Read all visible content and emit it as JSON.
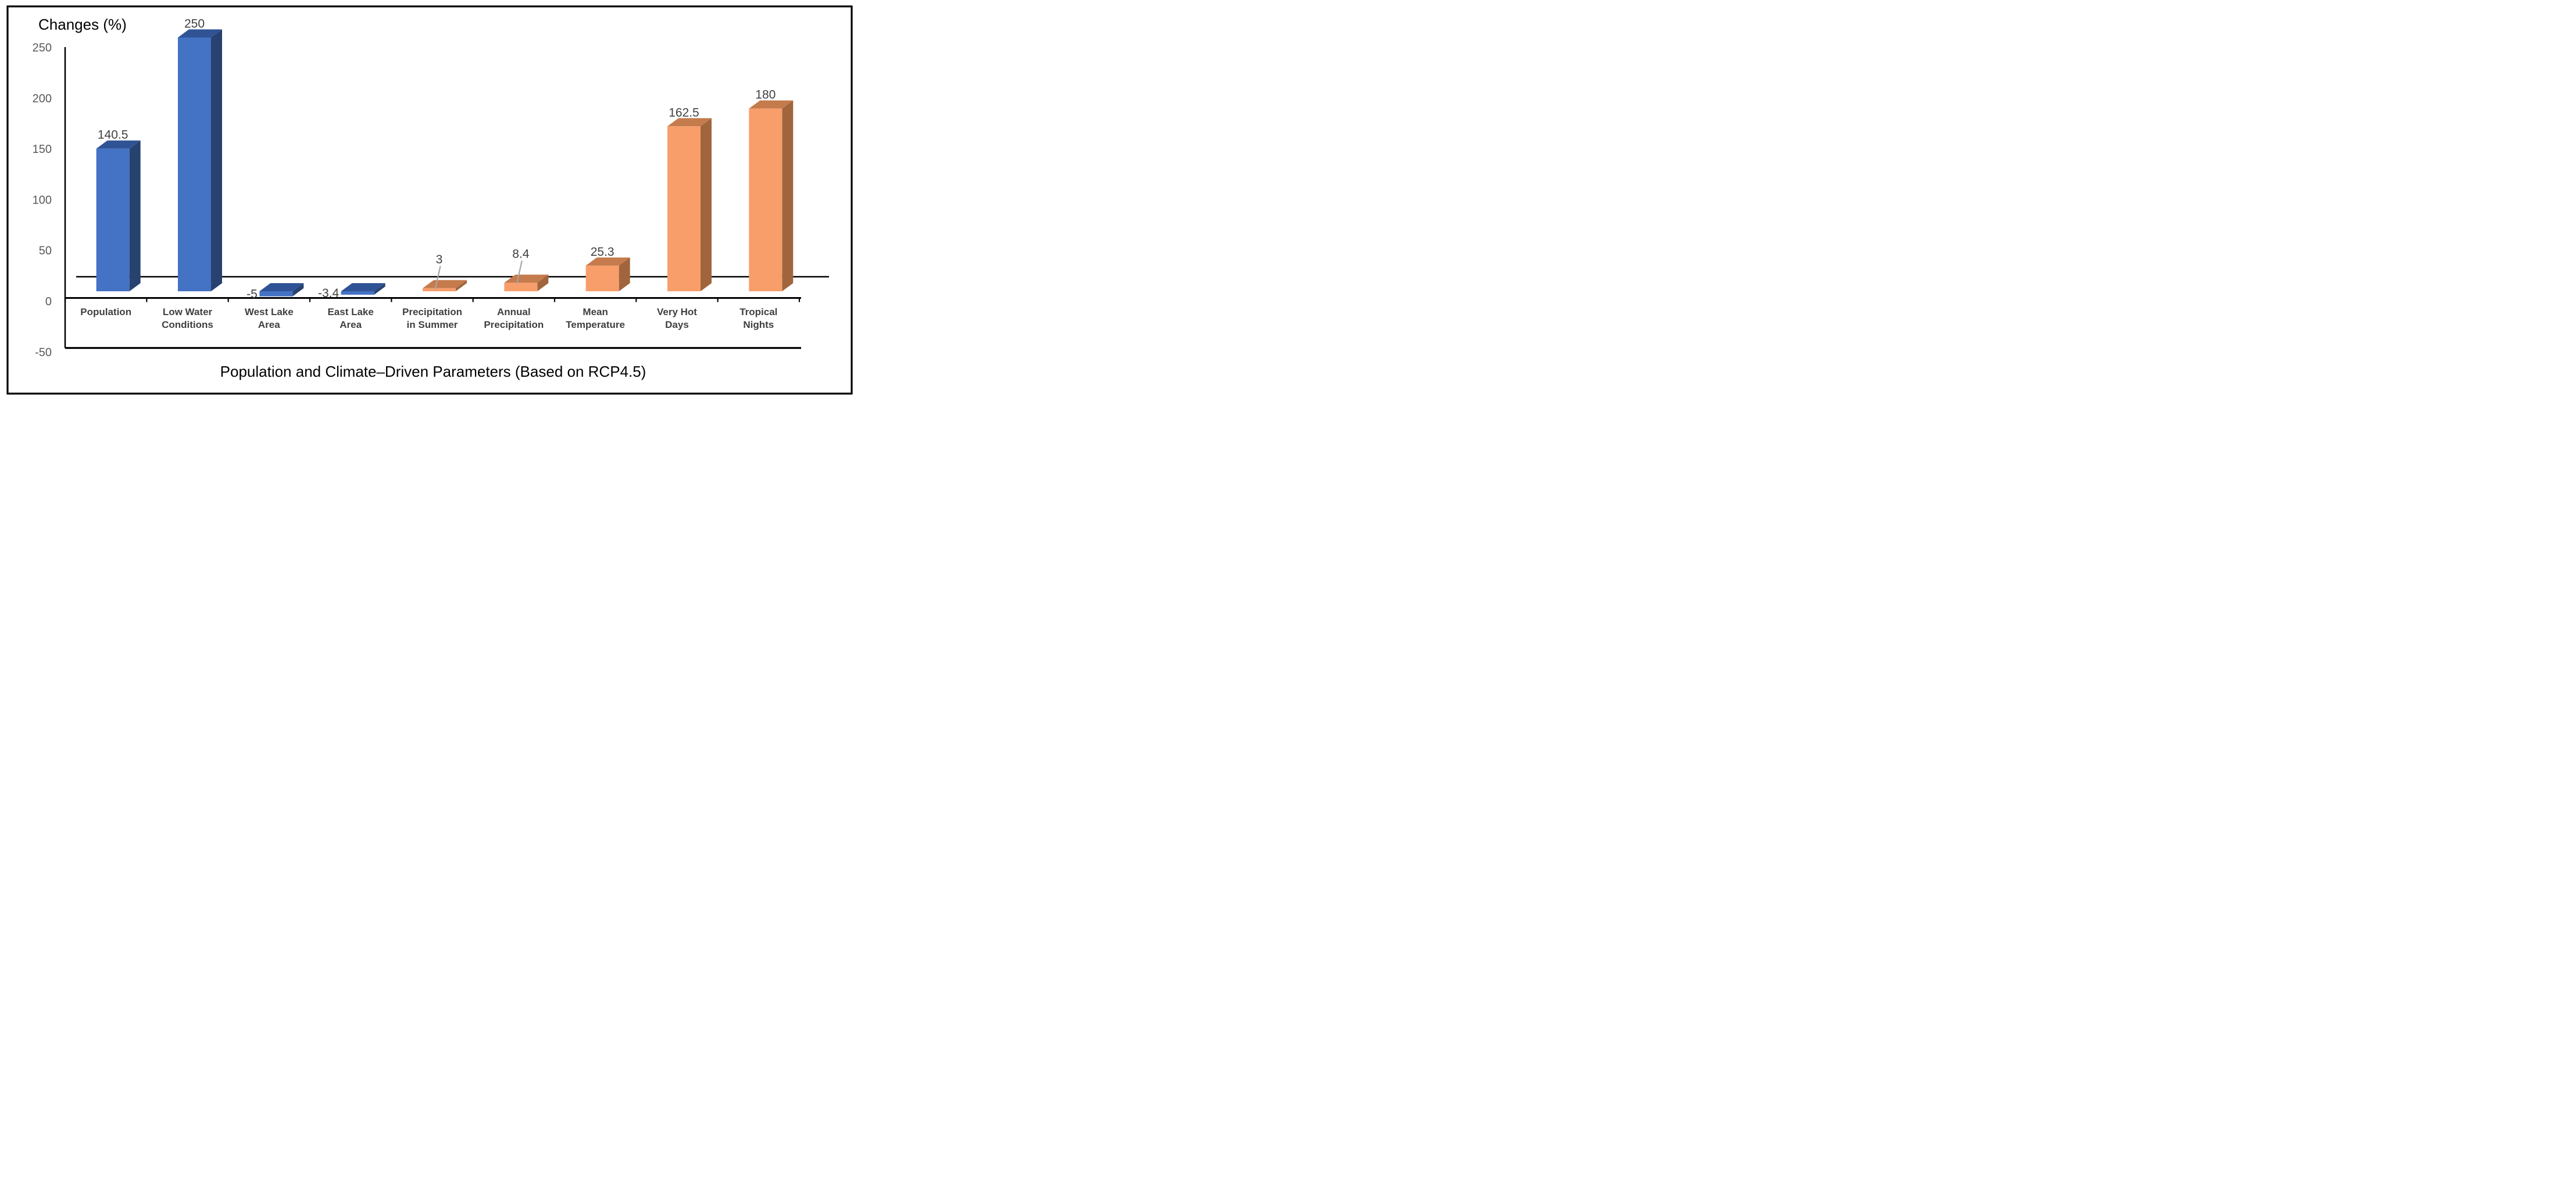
{
  "chart_data": {
    "type": "bar",
    "style": "3d-clustered-column",
    "y_axis_title": "Changes (%)",
    "x_axis_title": "Population and Climate–Driven Parameters (Based on RCP4.5)",
    "categories": [
      "Population",
      "Low Water Conditions",
      "West Lake Area",
      "East Lake Area",
      "Precipitation in Summer",
      "Annual Precipitation",
      "Mean Temperature",
      "Very Hot Days",
      "Tropical Nights"
    ],
    "values": [
      140.5,
      250,
      -5,
      -3.4,
      3,
      8.4,
      25.3,
      162.5,
      180
    ],
    "y_ticks": [
      250,
      200,
      150,
      100,
      50,
      0,
      -50
    ],
    "ylim": [
      -50,
      250
    ],
    "grid": false,
    "legend": false,
    "points": [
      {
        "label_lines": [
          "Population"
        ],
        "value": 140.5,
        "data_label": "140.5",
        "color_key": "blue",
        "label_placement": "above"
      },
      {
        "label_lines": [
          "Low Water",
          "Conditions"
        ],
        "value": 250,
        "data_label": "250",
        "color_key": "blue",
        "label_placement": "above"
      },
      {
        "label_lines": [
          "West Lake",
          "Area"
        ],
        "value": -5,
        "data_label": "-5",
        "color_key": "blue",
        "label_placement": "left"
      },
      {
        "label_lines": [
          "East Lake",
          "Area"
        ],
        "value": -3.4,
        "data_label": "-3.4",
        "color_key": "blue",
        "label_placement": "left"
      },
      {
        "label_lines": [
          "Precipitation",
          "in Summer"
        ],
        "value": 3,
        "data_label": "3",
        "color_key": "orange",
        "label_placement": "leader"
      },
      {
        "label_lines": [
          "Annual",
          "Precipitation"
        ],
        "value": 8.4,
        "data_label": "8.4",
        "color_key": "orange",
        "label_placement": "leader"
      },
      {
        "label_lines": [
          "Mean",
          "Temperature"
        ],
        "value": 25.3,
        "data_label": "25.3",
        "color_key": "orange",
        "label_placement": "above"
      },
      {
        "label_lines": [
          "Very Hot",
          "Days"
        ],
        "value": 162.5,
        "data_label": "162.5",
        "color_key": "orange",
        "label_placement": "above"
      },
      {
        "label_lines": [
          "Tropical",
          "Nights"
        ],
        "value": 180,
        "data_label": "180",
        "color_key": "orange",
        "label_placement": "above"
      }
    ],
    "colors": {
      "blue": {
        "front": "#4472C4",
        "top": "#305395",
        "side": "#27426F"
      },
      "orange": {
        "front": "#F89E6B",
        "top": "#C57B4C",
        "side": "#A0653C"
      },
      "axis": "#000000",
      "tick_label": "#595959",
      "data_label": "#404040",
      "category_label": "#3F3F3F",
      "leader_line": "#A6A6A6",
      "title": "#000000"
    }
  }
}
